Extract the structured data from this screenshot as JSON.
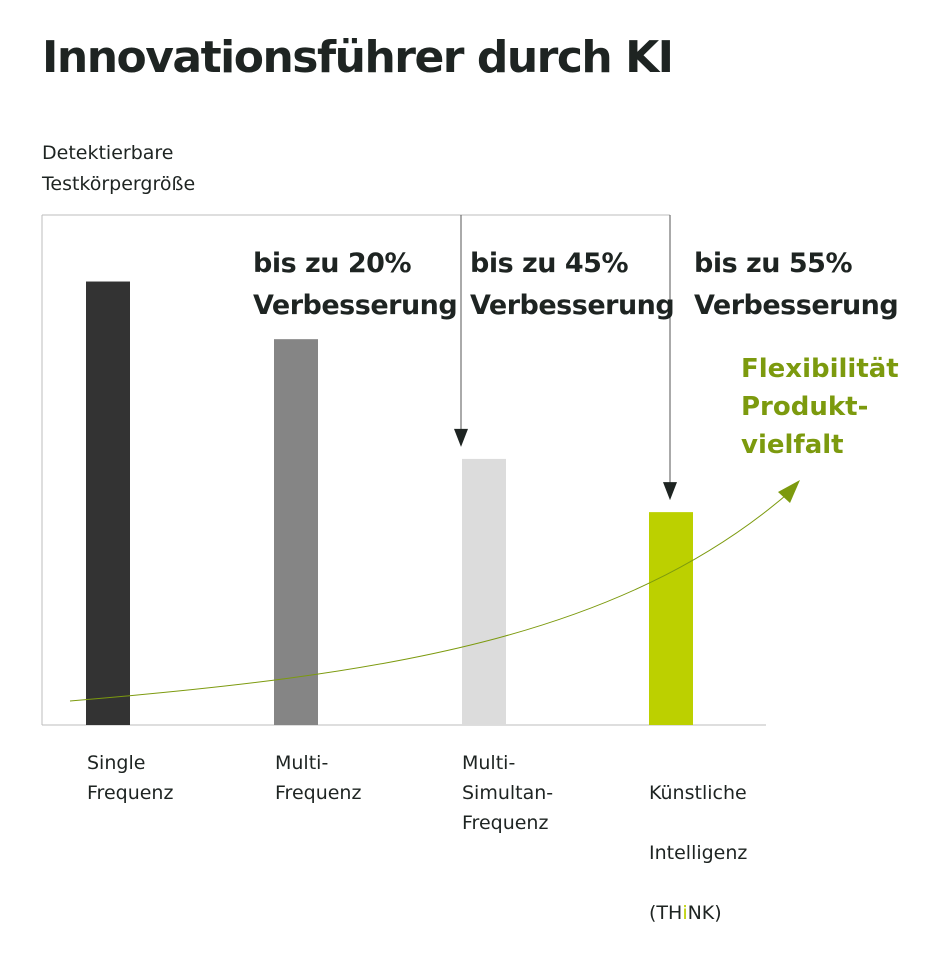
{
  "chart_data": {
    "type": "bar",
    "title": "Innovationsführer durch KI",
    "ylabel": "Detektierbare\nTestkörpergröße",
    "categories": [
      "Single\nFrequenz",
      "Multi-\nFrequenz",
      "Multi-\nSimultan-\nFrequenz",
      "Künstliche\nIntelligenz\n(THiNK)"
    ],
    "values": [
      100,
      87,
      60,
      48
    ],
    "ylim": [
      0,
      115
    ],
    "bar_colors": [
      "#333333",
      "#858585",
      "#dcdcdc",
      "#bcd000"
    ],
    "annotations": [
      {
        "line1": "bis zu 20%",
        "line2": "Verbesserung"
      },
      {
        "line1": "bis zu 45%",
        "line2": "Verbesserung"
      },
      {
        "line1": "bis zu 55%",
        "line2": "Verbesserung"
      }
    ],
    "trend_label": [
      "Flexibilität",
      "Produkt-",
      "vielfalt"
    ],
    "trend_color": "#7c9a0e",
    "grid": false
  },
  "category_think": {
    "pre": "(TH",
    "highlight": "i",
    "post": "NK)"
  }
}
